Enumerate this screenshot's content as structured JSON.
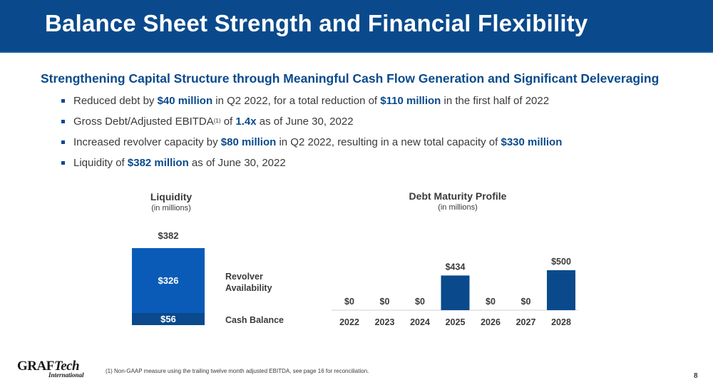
{
  "header": {
    "title": "Balance Sheet Strength and Financial Flexibility"
  },
  "subtitle": "Strengthening Capital Structure through Meaningful Cash Flow Generation and Significant Deleveraging",
  "bullets": [
    {
      "t1": "Reduced debt by ",
      "h1": "$40 million",
      "t2": " in Q2 2022, for a total reduction of ",
      "h2": "$110 million",
      "t3": " in the first half of 2022"
    },
    {
      "t1": "Gross Debt/Adjusted EBITDA",
      "sup": "(1)",
      "t2": " of ",
      "h1": "1.4x",
      "t3": " as of June 30, 2022"
    },
    {
      "t1": "Increased revolver capacity by ",
      "h1": "$80 million",
      "t2": " in Q2 2022, resulting in a new total capacity of ",
      "h2": "$330 million"
    },
    {
      "t1": "Liquidity of ",
      "h1": "$382 million",
      "t2": " as of June 30, 2022"
    }
  ],
  "liquidity": {
    "title": "Liquidity",
    "subtitle": "(in millions)",
    "total_label": "$382",
    "revolver_label": "$326",
    "cash_label": "$56",
    "legend_revolver_1": "Revolver",
    "legend_revolver_2": "Availability",
    "legend_cash": "Cash Balance"
  },
  "debt": {
    "title": "Debt Maturity Profile",
    "subtitle": "(in millions)"
  },
  "chart_data": [
    {
      "type": "bar",
      "title": "Liquidity",
      "subtitle": "(in millions)",
      "stacked": true,
      "categories": [
        "Liquidity"
      ],
      "series": [
        {
          "name": "Cash Balance",
          "values": [
            56
          ],
          "label": "$56"
        },
        {
          "name": "Revolver Availability",
          "values": [
            326
          ],
          "label": "$326"
        }
      ],
      "total": 382,
      "total_label": "$382"
    },
    {
      "type": "bar",
      "title": "Debt Maturity Profile",
      "subtitle": "(in millions)",
      "categories": [
        "2022",
        "2023",
        "2024",
        "2025",
        "2026",
        "2027",
        "2028"
      ],
      "values": [
        0,
        0,
        0,
        434,
        0,
        0,
        500
      ],
      "labels": [
        "$0",
        "$0",
        "$0",
        "$434",
        "$0",
        "$0",
        "$500"
      ],
      "ylim": [
        0,
        500
      ],
      "color": "#0a4a8c"
    }
  ],
  "footnote": "(1)    Non-GAAP measure using the trailing twelve month adjusted EBITDA, see page 16 for reconciliation.",
  "page_number": "8",
  "logo": {
    "part1": "GRAF",
    "part2": "Tech",
    "part3": "International"
  },
  "colors": {
    "brand": "#0a4a8c",
    "accent": "#0a5bb8",
    "text": "#3a3a3a"
  }
}
